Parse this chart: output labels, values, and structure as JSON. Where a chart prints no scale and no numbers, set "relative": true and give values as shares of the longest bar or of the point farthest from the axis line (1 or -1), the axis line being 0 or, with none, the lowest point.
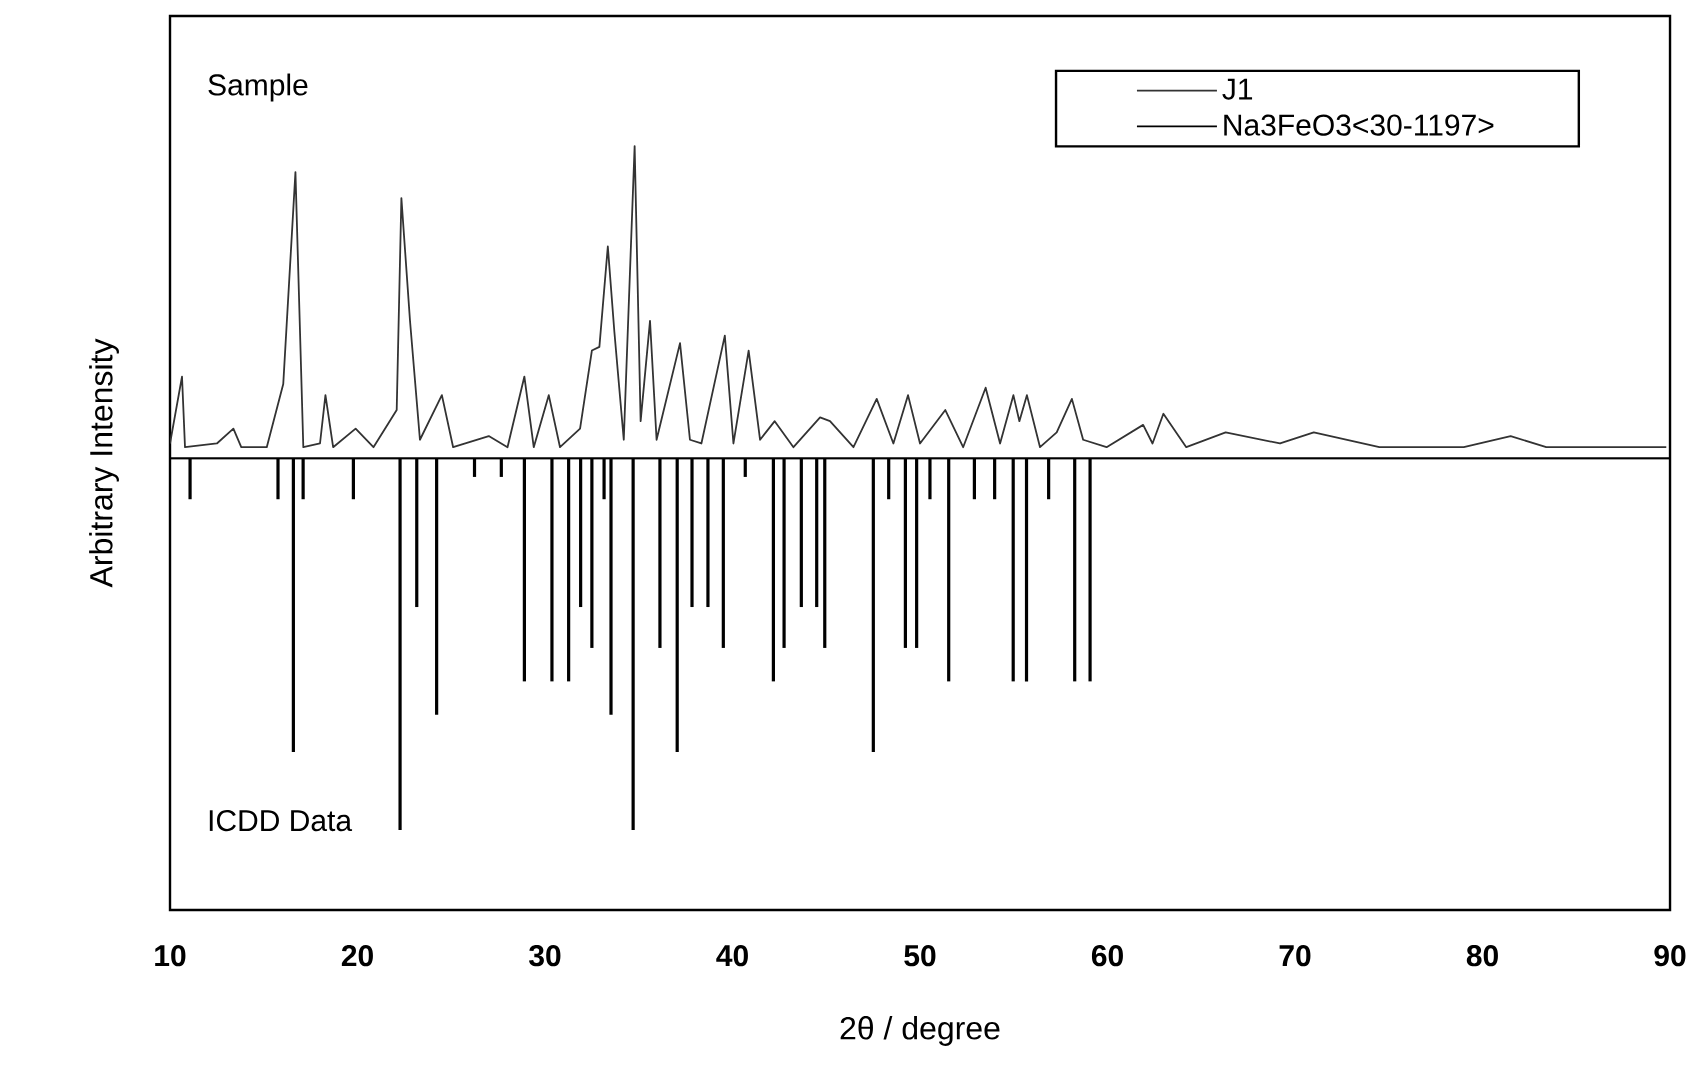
{
  "chart_data": {
    "type": "line",
    "relative": true,
    "xlabel": "2θ / degree",
    "ylabel": "Arbitrary Intensity",
    "xlim": [
      10,
      90
    ],
    "xticks": [
      10,
      20,
      30,
      40,
      50,
      60,
      70,
      80,
      90
    ],
    "legend": "top right",
    "annotations": [
      "Sample",
      "ICDD Data"
    ],
    "series": [
      {
        "name": "J1",
        "color": "#333333",
        "x": [
          10.0,
          10.64,
          10.8,
          12.5,
          13.38,
          13.8,
          15.16,
          16.04,
          16.69,
          17.11,
          18.0,
          18.29,
          18.7,
          19.9,
          20.85,
          22.09,
          22.34,
          22.8,
          23.33,
          24.5,
          25.1,
          27.0,
          28.0,
          28.9,
          29.4,
          30.2,
          30.8,
          31.87,
          32.5,
          32.9,
          33.35,
          33.7,
          34.2,
          34.78,
          35.1,
          35.6,
          35.95,
          37.2,
          37.73,
          38.34,
          39.16,
          39.59,
          40.05,
          40.86,
          41.47,
          42.25,
          43.25,
          44.67,
          45.2,
          46.45,
          47.69,
          48.58,
          49.36,
          50.0,
          51.35,
          52.3,
          53.5,
          54.27,
          54.98,
          55.3,
          55.7,
          56.4,
          57.29,
          58.1,
          58.7,
          59.95,
          61.9,
          62.4,
          62.98,
          64.2,
          66.3,
          69.2,
          71.0,
          74.5,
          79.0,
          81.5,
          83.4,
          89.8
        ],
        "values": [
          0.04,
          0.22,
          0.03,
          0.04,
          0.08,
          0.03,
          0.03,
          0.2,
          0.77,
          0.03,
          0.04,
          0.17,
          0.03,
          0.08,
          0.03,
          0.13,
          0.7,
          0.37,
          0.05,
          0.17,
          0.03,
          0.06,
          0.03,
          0.22,
          0.03,
          0.17,
          0.03,
          0.08,
          0.29,
          0.3,
          0.57,
          0.34,
          0.05,
          0.84,
          0.1,
          0.37,
          0.05,
          0.31,
          0.05,
          0.04,
          0.23,
          0.33,
          0.04,
          0.29,
          0.05,
          0.1,
          0.03,
          0.11,
          0.1,
          0.03,
          0.16,
          0.04,
          0.17,
          0.04,
          0.13,
          0.03,
          0.19,
          0.04,
          0.17,
          0.1,
          0.17,
          0.03,
          0.07,
          0.16,
          0.05,
          0.03,
          0.09,
          0.04,
          0.12,
          0.03,
          0.07,
          0.04,
          0.07,
          0.03,
          0.03,
          0.06,
          0.03,
          0.03
        ]
      },
      {
        "name": "Na3FeO3<30-1197>",
        "type": "bar",
        "color": "#000000",
        "x": [
          11.07,
          15.76,
          16.58,
          17.1,
          19.78,
          22.27,
          23.16,
          24.22,
          26.24,
          27.67,
          28.9,
          30.37,
          31.26,
          31.9,
          32.5,
          33.15,
          33.52,
          34.7,
          36.13,
          37.05,
          37.84,
          38.69,
          39.51,
          40.68,
          42.18,
          42.75,
          43.67,
          44.49,
          44.92,
          47.51,
          48.33,
          49.22,
          49.82,
          50.53,
          51.53,
          52.9,
          53.98,
          54.97,
          55.68,
          56.86,
          58.25,
          59.07
        ],
        "values": [
          -0.11,
          -0.11,
          -0.79,
          -0.11,
          -0.11,
          -1,
          -0.4,
          -0.69,
          -0.05,
          -0.05,
          -0.6,
          -0.6,
          -0.6,
          -0.4,
          -0.51,
          -0.11,
          -0.69,
          -1,
          -0.51,
          -0.79,
          -0.4,
          -0.4,
          -0.51,
          -0.05,
          -0.6,
          -0.51,
          -0.4,
          -0.4,
          -0.51,
          -0.79,
          -0.11,
          -0.51,
          -0.51,
          -0.11,
          -0.6,
          -0.11,
          -0.11,
          -0.6,
          -0.6,
          -0.11,
          -0.6,
          -0.6
        ]
      }
    ]
  }
}
